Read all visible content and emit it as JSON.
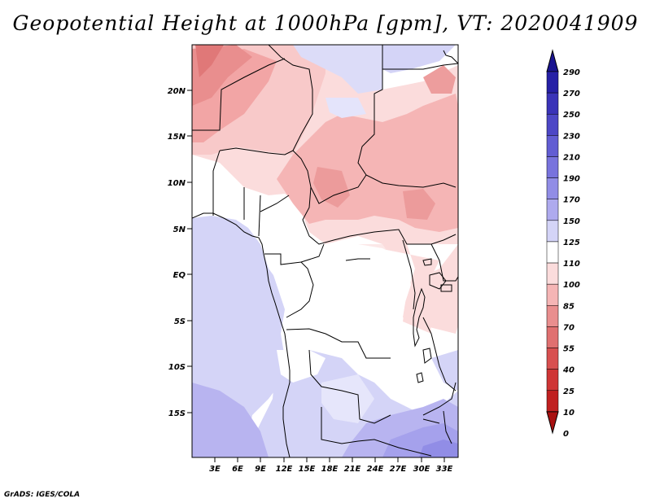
{
  "title": "Geopotential Height at 1000hPa [gpm], VT: 2020041909",
  "footer": "GrADS: IGES/COLA",
  "map": {
    "region": "Central & East Africa",
    "lon_labels": [
      "3E",
      "6E",
      "9E",
      "12E",
      "15E",
      "18E",
      "21E",
      "24E",
      "27E",
      "30E",
      "33E"
    ],
    "lat_labels": [
      "20N",
      "15N",
      "10N",
      "5N",
      "EQ",
      "5S",
      "10S",
      "15S"
    ]
  },
  "colorbar": {
    "levels": [
      {
        "label": "290",
        "color": "#1a1490"
      },
      {
        "label": "270",
        "color": "#2620a6"
      },
      {
        "label": "250",
        "color": "#3a33b8"
      },
      {
        "label": "230",
        "color": "#4d47c6"
      },
      {
        "label": "210",
        "color": "#625dd3"
      },
      {
        "label": "190",
        "color": "#7873dd"
      },
      {
        "label": "170",
        "color": "#918de6"
      },
      {
        "label": "150",
        "color": "#aeaaee"
      },
      {
        "label": "125",
        "color": "#d4d4f7"
      },
      {
        "label": "110",
        "color": "#ffffff"
      },
      {
        "label": "100",
        "color": "#fbdcdc"
      },
      {
        "label": "85",
        "color": "#f5b5b5"
      },
      {
        "label": "70",
        "color": "#e98e8e"
      },
      {
        "label": "55",
        "color": "#e07070"
      },
      {
        "label": "40",
        "color": "#d85050"
      },
      {
        "label": "25",
        "color": "#cf3535"
      },
      {
        "label": "10",
        "color": "#c02020"
      },
      {
        "label": "0",
        "color": "#a81010"
      }
    ]
  }
}
